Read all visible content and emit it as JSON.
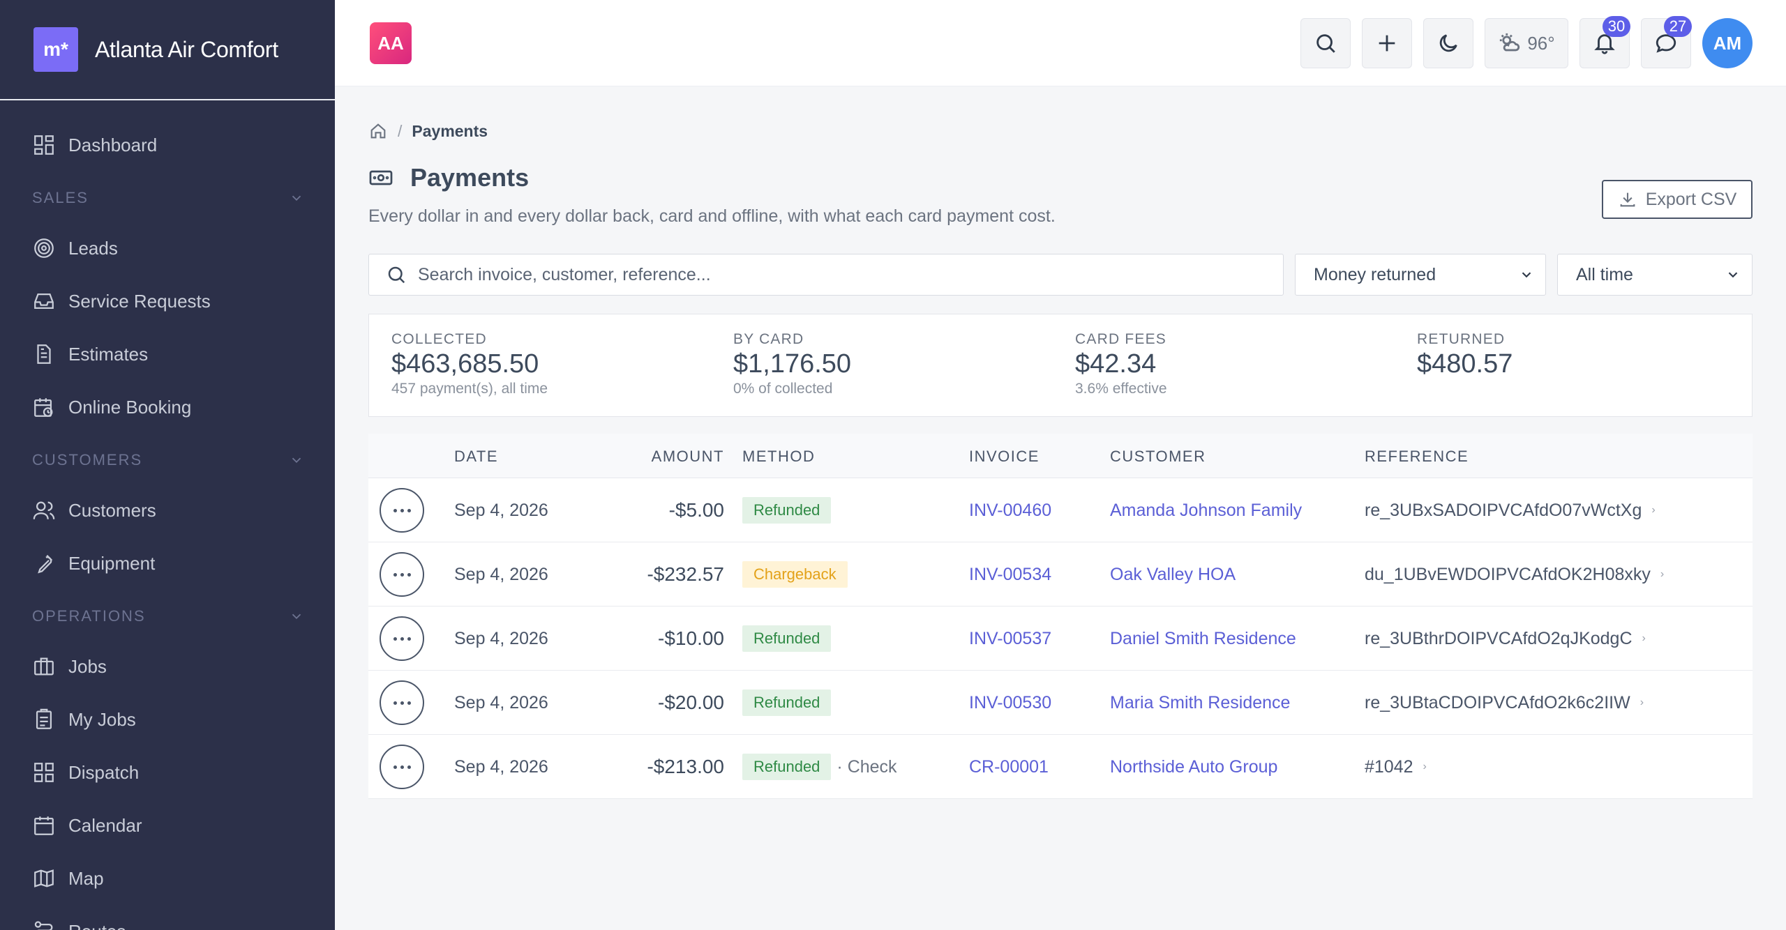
{
  "brand": {
    "logo": "m*",
    "name": "Atlanta Air Comfort"
  },
  "sidebar": {
    "top_items": [
      {
        "label": "Dashboard",
        "icon": "dashboard-icon"
      }
    ],
    "sections": [
      {
        "title": "SALES",
        "items": [
          {
            "label": "Leads",
            "icon": "target-icon"
          },
          {
            "label": "Service Requests",
            "icon": "inbox-icon"
          },
          {
            "label": "Estimates",
            "icon": "document-icon"
          },
          {
            "label": "Online Booking",
            "icon": "calendar-clock-icon"
          }
        ]
      },
      {
        "title": "CUSTOMERS",
        "items": [
          {
            "label": "Customers",
            "icon": "users-icon"
          },
          {
            "label": "Equipment",
            "icon": "wrench-icon"
          }
        ]
      },
      {
        "title": "OPERATIONS",
        "items": [
          {
            "label": "Jobs",
            "icon": "briefcase-icon"
          },
          {
            "label": "My Jobs",
            "icon": "clipboard-icon"
          },
          {
            "label": "Dispatch",
            "icon": "grid-icon"
          },
          {
            "label": "Calendar",
            "icon": "calendar-icon"
          },
          {
            "label": "Map",
            "icon": "map-icon"
          },
          {
            "label": "Routes",
            "icon": "routes-icon"
          }
        ]
      }
    ]
  },
  "topbar": {
    "app_badge": "AA",
    "weather": "96°",
    "notifications_count": "30",
    "messages_count": "27",
    "avatar": "AM"
  },
  "breadcrumb": {
    "current": "Payments",
    "separator": "/"
  },
  "page": {
    "title": "Payments",
    "subtitle": "Every dollar in and every dollar back, card and offline, with what each card payment cost.",
    "export_label": "Export CSV"
  },
  "filters": {
    "search_placeholder": "Search invoice, customer, reference...",
    "type_selected": "Money returned",
    "period_selected": "All time"
  },
  "stats": [
    {
      "label": "COLLECTED",
      "value": "$463,685.50",
      "note": "457 payment(s), all time"
    },
    {
      "label": "BY CARD",
      "value": "$1,176.50",
      "note": "0% of collected"
    },
    {
      "label": "CARD FEES",
      "value": "$42.34",
      "note": "3.6% effective"
    },
    {
      "label": "RETURNED",
      "value": "$480.57",
      "note": ""
    }
  ],
  "table": {
    "columns": [
      "DATE",
      "AMOUNT",
      "METHOD",
      "INVOICE",
      "CUSTOMER",
      "REFERENCE"
    ],
    "rows": [
      {
        "date": "Sep 4, 2026",
        "amount": "-$5.00",
        "method": "Refunded",
        "method_extra": "",
        "invoice": "INV-00460",
        "customer": "Amanda Johnson Family",
        "reference": "re_3UBxSADOIPVCAfdO07vWctXg"
      },
      {
        "date": "Sep 4, 2026",
        "amount": "-$232.57",
        "method": "Chargeback",
        "method_extra": "",
        "invoice": "INV-00534",
        "customer": "Oak Valley HOA",
        "reference": "du_1UBvEWDOIPVCAfdOK2H08xky"
      },
      {
        "date": "Sep 4, 2026",
        "amount": "-$10.00",
        "method": "Refunded",
        "method_extra": "",
        "invoice": "INV-00537",
        "customer": "Daniel Smith Residence",
        "reference": "re_3UBthrDOIPVCAfdO2qJKodgC"
      },
      {
        "date": "Sep 4, 2026",
        "amount": "-$20.00",
        "method": "Refunded",
        "method_extra": "",
        "invoice": "INV-00530",
        "customer": "Maria Smith Residence",
        "reference": "re_3UBtaCDOIPVCAfdO2k6c2IIW"
      },
      {
        "date": "Sep 4, 2026",
        "amount": "-$213.00",
        "method": "Refunded",
        "method_extra": "· Check",
        "invoice": "CR-00001",
        "customer": "Northside Auto Group",
        "reference": "#1042"
      }
    ]
  },
  "colors": {
    "sidebar": "#2c3049",
    "accent": "#5b5fd6",
    "refunded": "#2f8a45",
    "chargeback": "#e3a21a"
  }
}
